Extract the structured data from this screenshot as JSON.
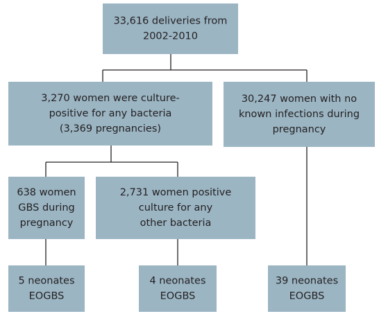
{
  "nodes": [
    {
      "lines": [
        "33,616 deliveries from",
        "2002-2010"
      ]
    },
    {
      "lines": [
        "3,270 women were culture-",
        "positive for any bacteria",
        "(3,369 pregnancies)"
      ]
    },
    {
      "lines": [
        "30,247 women with no",
        "known infections during",
        "pregnancy"
      ]
    },
    {
      "lines": [
        "638 women",
        "GBS during",
        "pregnancy"
      ]
    },
    {
      "lines": [
        "2,731 women positive",
        "culture for any",
        "other bacteria"
      ]
    },
    {
      "lines": [
        "5 neonates",
        "EOGBS"
      ]
    },
    {
      "lines": [
        "4 neonates",
        "EOGBS"
      ]
    },
    {
      "lines": [
        "39 neonates",
        "EOGBS"
      ]
    }
  ]
}
